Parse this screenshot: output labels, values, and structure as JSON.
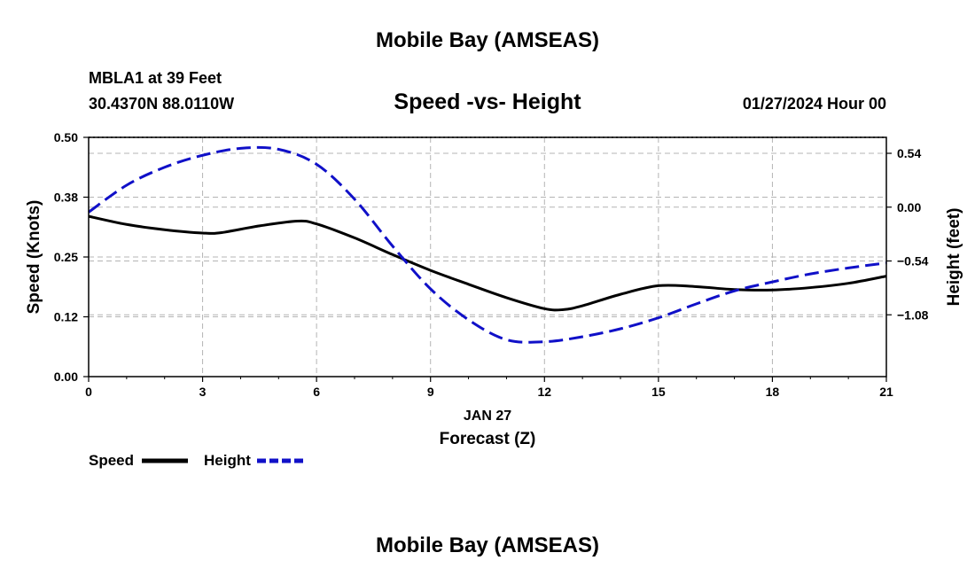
{
  "header": {
    "title": "Mobile Bay (AMSEAS)",
    "station": "MBLA1 at 39 Feet",
    "coords": "30.4370N  88.0110W",
    "subtitle": "Speed -vs- Height",
    "datetime": "01/27/2024 Hour 00"
  },
  "footer": {
    "title": "Mobile Bay (AMSEAS)"
  },
  "chart_data": {
    "type": "line",
    "title": "Speed -vs- Height",
    "xlabel": "Forecast (Z)",
    "xdate_label": "JAN 27",
    "ylabel_left": "Speed (Knots)",
    "ylabel_right": "Height (feet)",
    "xlim": [
      0,
      21
    ],
    "x_ticks": [
      0,
      3,
      6,
      9,
      12,
      15,
      18,
      21
    ],
    "x_tick_labels": [
      "0",
      "3",
      "6",
      "9",
      "12",
      "15",
      "18",
      "21"
    ],
    "ylim_left": [
      0.0,
      0.5
    ],
    "y_ticks_left": [
      0.0,
      0.125,
      0.25,
      0.375,
      0.5
    ],
    "y_tick_labels_left": [
      "0.00",
      "0.12",
      "0.25",
      "0.38",
      "0.50"
    ],
    "ylim_right": [
      -1.7,
      0.7
    ],
    "y_ticks_right": [
      -1.08,
      -0.54,
      0.0,
      0.54
    ],
    "y_tick_labels_right": [
      "−1.08",
      "−0.54",
      "0.00",
      "0.54"
    ],
    "grid": true,
    "legend_position": "bottom-left",
    "series": [
      {
        "name": "Speed",
        "axis": "left",
        "color": "#000000",
        "style": "solid",
        "x": [
          0,
          1,
          2,
          3,
          3.5,
          4.5,
          5.5,
          6,
          7,
          8,
          9,
          10,
          11,
          12,
          12.5,
          13,
          14,
          15,
          16,
          17,
          18,
          19,
          20,
          21
        ],
        "values": [
          0.335,
          0.318,
          0.307,
          0.3,
          0.301,
          0.315,
          0.325,
          0.319,
          0.29,
          0.255,
          0.222,
          0.193,
          0.165,
          0.142,
          0.14,
          0.148,
          0.172,
          0.19,
          0.188,
          0.182,
          0.181,
          0.186,
          0.195,
          0.21
        ]
      },
      {
        "name": "Height",
        "axis": "right",
        "color": "#1010c8",
        "style": "dashed",
        "x": [
          0,
          1,
          2,
          3,
          4,
          5,
          6,
          7,
          8,
          9,
          10,
          11,
          12,
          13,
          14,
          15,
          16,
          17,
          18,
          19,
          20,
          21
        ],
        "values": [
          -0.05,
          0.22,
          0.4,
          0.52,
          0.59,
          0.58,
          0.43,
          0.08,
          -0.39,
          -0.82,
          -1.13,
          -1.33,
          -1.35,
          -1.3,
          -1.22,
          -1.11,
          -0.97,
          -0.84,
          -0.75,
          -0.67,
          -0.61,
          -0.56
        ]
      }
    ]
  }
}
